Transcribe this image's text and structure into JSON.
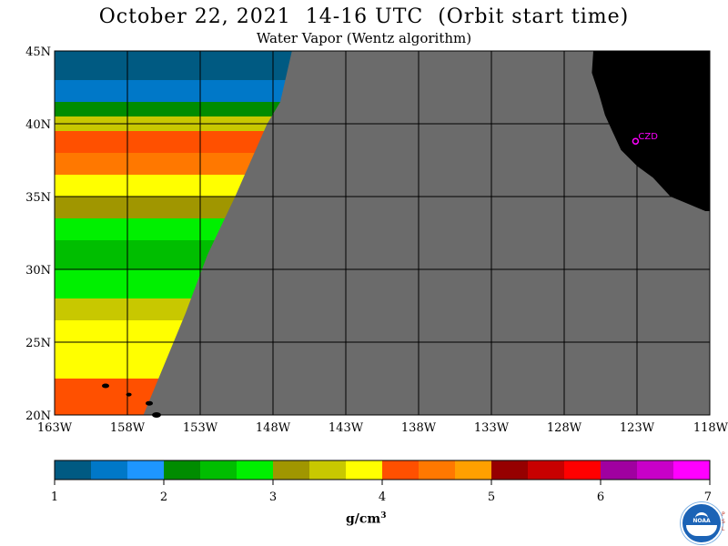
{
  "title": "October 22, 2021  14-16 UTC  (Orbit start time)",
  "subtitle": "Water Vapor (Wentz algorithm)",
  "station_label": "CZD",
  "units": {
    "base": "g/cm",
    "exponent": "3"
  },
  "map": {
    "lon_range": [
      -163,
      -118
    ],
    "lat_range": [
      20,
      45
    ],
    "lon_ticks": [
      {
        "value": -163,
        "label": "163W"
      },
      {
        "value": -158,
        "label": "158W"
      },
      {
        "value": -153,
        "label": "153W"
      },
      {
        "value": -148,
        "label": "148W"
      },
      {
        "value": -143,
        "label": "143W"
      },
      {
        "value": -138,
        "label": "138W"
      },
      {
        "value": -133,
        "label": "133W"
      },
      {
        "value": -128,
        "label": "128W"
      },
      {
        "value": -123,
        "label": "123W"
      },
      {
        "value": -118,
        "label": "118W"
      }
    ],
    "lat_ticks": [
      {
        "value": 20,
        "label": "20N"
      },
      {
        "value": 25,
        "label": "25N"
      },
      {
        "value": 30,
        "label": "30N"
      },
      {
        "value": 35,
        "label": "35N"
      },
      {
        "value": 40,
        "label": "40N"
      },
      {
        "value": 45,
        "label": "45N"
      }
    ],
    "swath_edge": [
      [
        -146.7,
        45
      ],
      [
        -147.5,
        41.5
      ],
      [
        -148.4,
        40
      ],
      [
        -150.6,
        35
      ],
      [
        -152.5,
        31
      ],
      [
        -154.0,
        27
      ],
      [
        -156.9,
        20
      ]
    ],
    "water_vapor_bands": [
      {
        "lat": [
          43.0,
          45.0
        ],
        "value": 1.2
      },
      {
        "lat": [
          41.5,
          43.0
        ],
        "value": 1.5
      },
      {
        "lat": [
          40.5,
          41.5
        ],
        "value": 2.3
      },
      {
        "lat": [
          39.5,
          40.5
        ],
        "value": 3.6
      },
      {
        "lat": [
          38.0,
          39.5
        ],
        "value": 4.2
      },
      {
        "lat": [
          36.5,
          38.0
        ],
        "value": 4.4
      },
      {
        "lat": [
          35.0,
          36.5
        ],
        "value": 3.8
      },
      {
        "lat": [
          33.5,
          35.0
        ],
        "value": 3.3
      },
      {
        "lat": [
          32.0,
          33.5
        ],
        "value": 2.9
      },
      {
        "lat": [
          30.0,
          32.0
        ],
        "value": 2.6
      },
      {
        "lat": [
          28.0,
          30.0
        ],
        "value": 2.9
      },
      {
        "lat": [
          26.5,
          28.0
        ],
        "value": 3.4
      },
      {
        "lat": [
          24.5,
          26.5
        ],
        "value": 3.7
      },
      {
        "lat": [
          22.5,
          24.5
        ],
        "value": 3.9
      },
      {
        "lat": [
          20.0,
          22.5
        ],
        "value": 4.3
      }
    ],
    "colors": {
      "no_data": "#6b6b6b",
      "land": "#000000",
      "station": "#ff00ff"
    }
  },
  "colorbar": {
    "colors": [
      "#005a82",
      "#0078c8",
      "#1e96ff",
      "#008c00",
      "#00be00",
      "#00f000",
      "#a09600",
      "#c8c800",
      "#ffff00",
      "#ff5000",
      "#ff7800",
      "#ffa000",
      "#960000",
      "#c80000",
      "#ff0000",
      "#a000a0",
      "#c800c8",
      "#ff00ff"
    ],
    "range": [
      1,
      7
    ],
    "labels": [
      "1",
      "2",
      "3",
      "4",
      "5",
      "6",
      "7"
    ]
  }
}
